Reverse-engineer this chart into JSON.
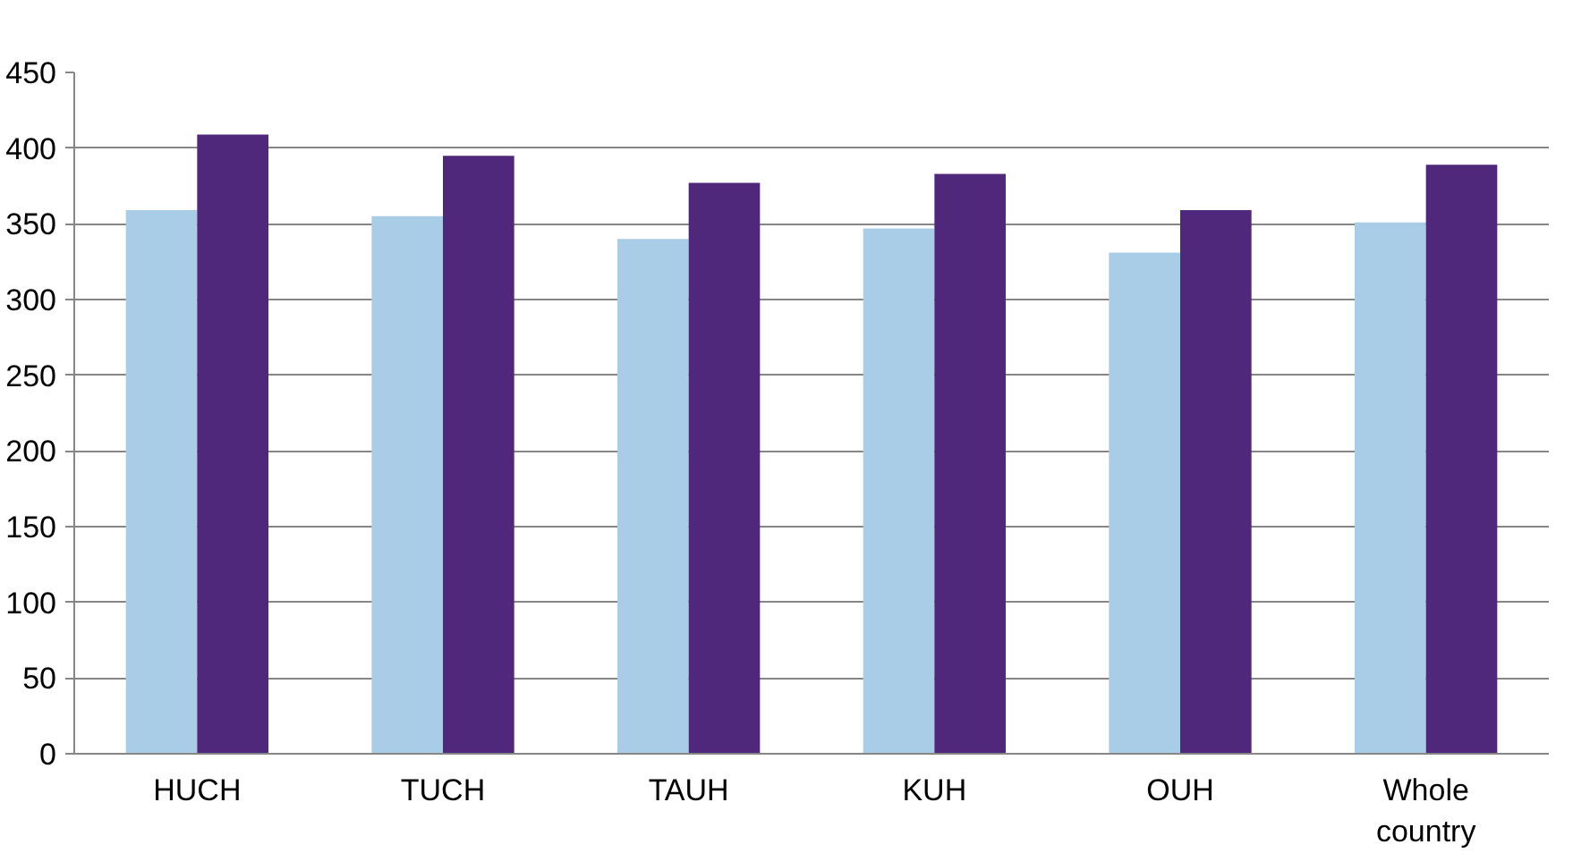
{
  "chart_data": {
    "type": "bar",
    "categories": [
      "HUCH",
      "TUCH",
      "TAUH",
      "KUH",
      "OUH",
      "Whole country"
    ],
    "series": [
      {
        "color": "#a9cde6",
        "values": [
          359,
          355,
          340,
          347,
          331,
          351
        ]
      },
      {
        "color": "#4f277b",
        "values": [
          409,
          395,
          377,
          383,
          359,
          389
        ]
      }
    ],
    "ylim": [
      0,
      450
    ],
    "yticks": [
      0,
      50,
      100,
      150,
      200,
      250,
      300,
      350,
      400,
      450
    ],
    "grid": "y"
  }
}
